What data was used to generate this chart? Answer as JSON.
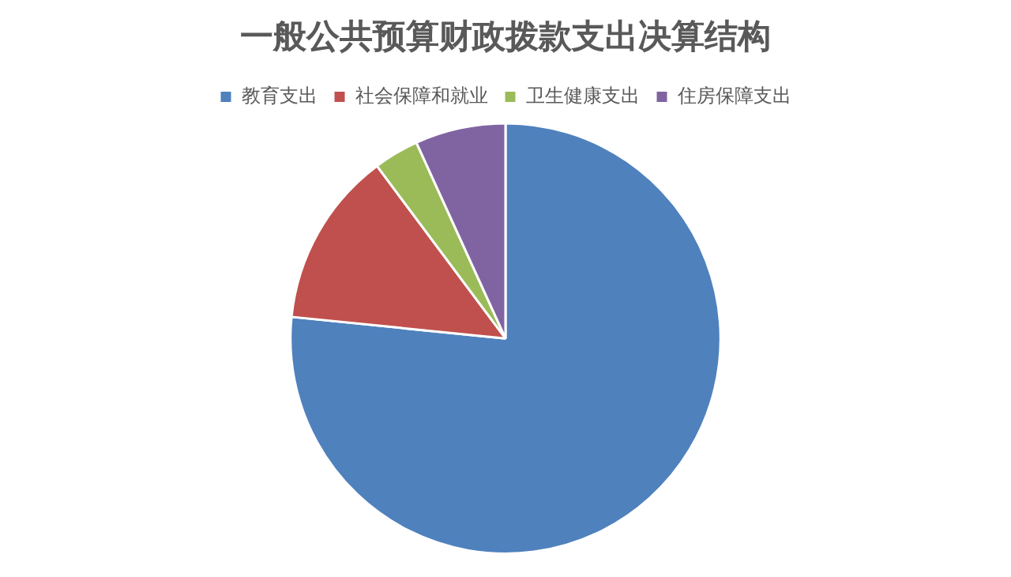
{
  "chart_data": {
    "type": "pie",
    "title": "一般公共预算财政拨款支出决算结构",
    "categories": [
      "教育支出",
      "社会保障和就业",
      "卫生健康支出",
      "住房保障支出"
    ],
    "values": [
      76.6,
      13.2,
      3.4,
      6.8
    ],
    "colors": [
      "#4f81bd",
      "#c0504d",
      "#9bbb59",
      "#8064a2"
    ],
    "legend": "top"
  }
}
